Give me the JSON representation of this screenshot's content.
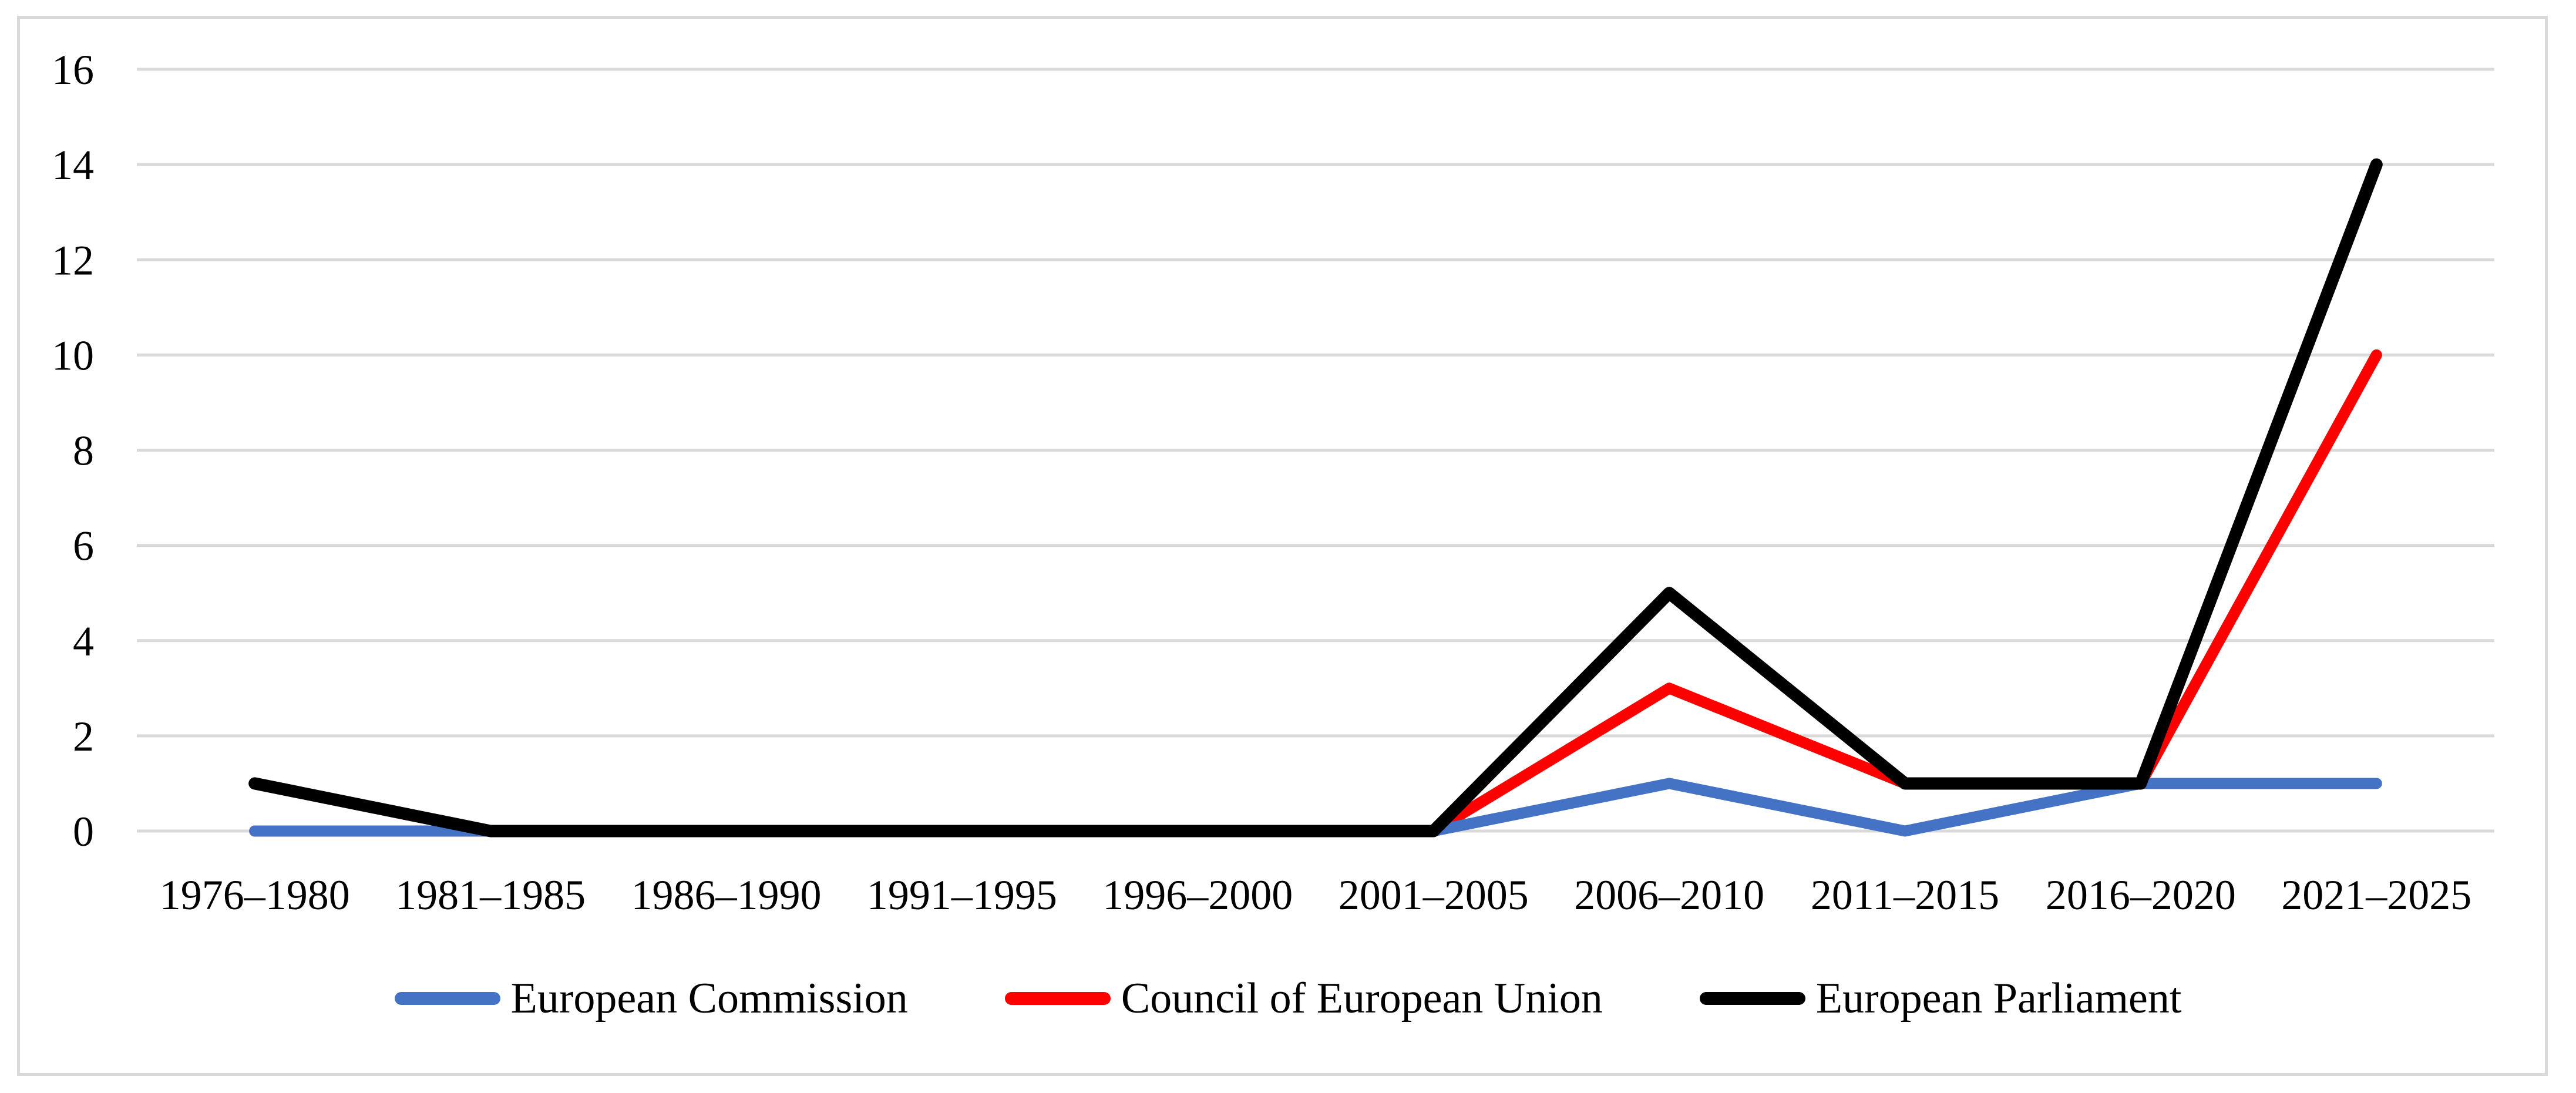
{
  "figure": {
    "background": "#FFFFFF",
    "border_color": "#D9D9D9"
  },
  "chart_data": {
    "type": "line",
    "title": "",
    "xlabel": "",
    "ylabel": "",
    "categories": [
      "1976–1980",
      "1981–1985",
      "1986–1990",
      "1991–1995",
      "1996–2000",
      "2001–2005",
      "2006–2010",
      "2011–2015",
      "2016–2020",
      "2021–2025"
    ],
    "series": [
      {
        "name": "European Commission",
        "color": "#4472C4",
        "values": [
          0,
          0,
          0,
          0,
          0,
          0,
          1,
          0,
          1,
          1
        ]
      },
      {
        "name": "Council of European Union",
        "color": "#FF0000",
        "values": [
          0,
          0,
          0,
          0,
          0,
          0,
          3,
          1,
          1,
          10
        ]
      },
      {
        "name": "European Parliament",
        "color": "#000000",
        "values": [
          1,
          0,
          0,
          0,
          0,
          0,
          5,
          1,
          1,
          14
        ]
      }
    ],
    "ylim": [
      0,
      16
    ],
    "yticks": [
      0,
      2,
      4,
      6,
      8,
      10,
      12,
      14,
      16
    ],
    "gridlines": "horizontal",
    "gridline_color": "#D9D9D9",
    "tick_label_color": "#000000",
    "legend_position": "bottom"
  }
}
